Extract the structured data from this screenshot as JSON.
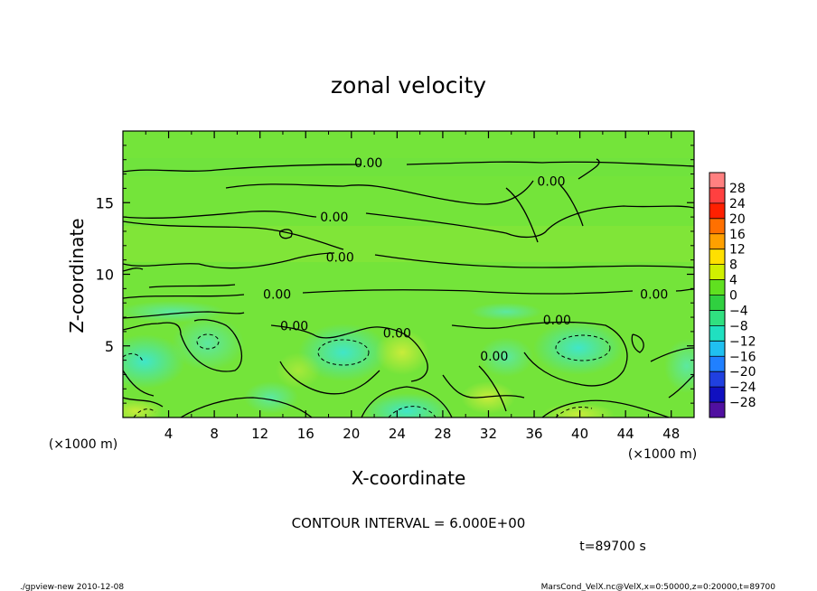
{
  "chart_data": {
    "type": "heatmap",
    "title": "zonal velocity",
    "xlabel": "X-coordinate",
    "ylabel": "Z-coordinate",
    "x_unit": "(×1000 m)",
    "z_unit": "(×1000 m)",
    "xlim": [
      0,
      50
    ],
    "ylim": [
      0,
      20
    ],
    "x_ticks": [
      4,
      8,
      12,
      16,
      20,
      24,
      28,
      32,
      36,
      40,
      44,
      48
    ],
    "y_ticks": [
      5,
      10,
      15
    ],
    "colorbar": {
      "labels": [
        "28",
        "24",
        "20",
        "16",
        "12",
        "8",
        "4",
        "0",
        "−4",
        "−8",
        "−12",
        "−16",
        "−20",
        "−24",
        "−28"
      ],
      "colors": [
        "#ff8080",
        "#ff4040",
        "#ff2000",
        "#ff7000",
        "#ffa000",
        "#ffe000",
        "#d0f000",
        "#60e020",
        "#30d040",
        "#30e080",
        "#20e0c0",
        "#20c0f0",
        "#2080ff",
        "#2040e0",
        "#1010c0",
        "#5010a0"
      ]
    },
    "contour_labels": [
      {
        "text": "0.00",
        "x": 21.5,
        "z": 17.8
      },
      {
        "text": "0.00",
        "x": 37.5,
        "z": 16.5
      },
      {
        "text": "0.00",
        "x": 18.5,
        "z": 14.0
      },
      {
        "text": "0.00",
        "x": 19.0,
        "z": 11.2
      },
      {
        "text": "0.00",
        "x": 13.5,
        "z": 8.6
      },
      {
        "text": "0.00",
        "x": 46.5,
        "z": 8.6
      },
      {
        "text": "0.00",
        "x": 15.0,
        "z": 6.4
      },
      {
        "text": "0.00",
        "x": 38.0,
        "z": 6.8
      },
      {
        "text": "0.00",
        "x": 24.0,
        "z": 5.9
      },
      {
        "text": "0.00",
        "x": 32.5,
        "z": 4.3
      }
    ],
    "contour_interval_text": "CONTOUR INTERVAL = 6.000E+00",
    "time_text": "t=89700 s"
  },
  "footer": {
    "left": "./gpview-new   2010-12-08",
    "right": "MarsCond_VelX.nc@VelX,x=0:50000,z=0:20000,t=89700"
  }
}
